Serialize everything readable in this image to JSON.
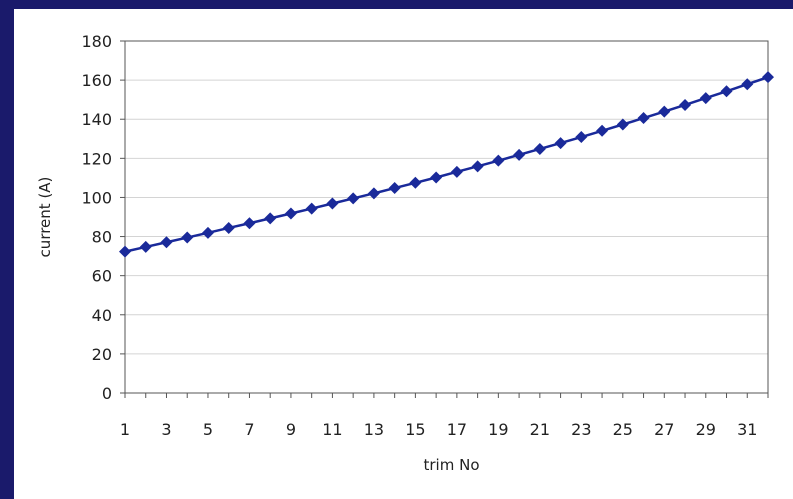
{
  "chart_data": {
    "type": "line",
    "title": "",
    "xlabel": "trim No",
    "ylabel": "current (A)",
    "ylim": [
      0,
      180
    ],
    "yticks": [
      0,
      20,
      40,
      60,
      80,
      100,
      120,
      140,
      160,
      180
    ],
    "xlim": [
      1,
      32
    ],
    "xticks": [
      1,
      3,
      5,
      7,
      9,
      11,
      13,
      15,
      17,
      19,
      21,
      23,
      25,
      27,
      29,
      31
    ],
    "grid": "horizontal",
    "legend": "none",
    "series": [
      {
        "color": "#1a2a9a",
        "marker": "diamond",
        "x": [
          1,
          2,
          3,
          4,
          5,
          6,
          7,
          8,
          9,
          10,
          11,
          12,
          13,
          14,
          15,
          16,
          17,
          18,
          19,
          20,
          21,
          22,
          23,
          24,
          25,
          26,
          27,
          28,
          29,
          30,
          31,
          32
        ],
        "y": [
          72.3,
          74.7,
          77.1,
          79.5,
          81.9,
          84.4,
          86.8,
          89.3,
          91.8,
          94.3,
          96.9,
          99.5,
          102.1,
          104.8,
          107.5,
          110.2,
          113.1,
          115.9,
          118.8,
          121.8,
          124.8,
          127.8,
          130.9,
          134.1,
          137.3,
          140.6,
          143.9,
          147.3,
          150.8,
          154.3,
          157.9,
          161.5
        ]
      }
    ]
  }
}
